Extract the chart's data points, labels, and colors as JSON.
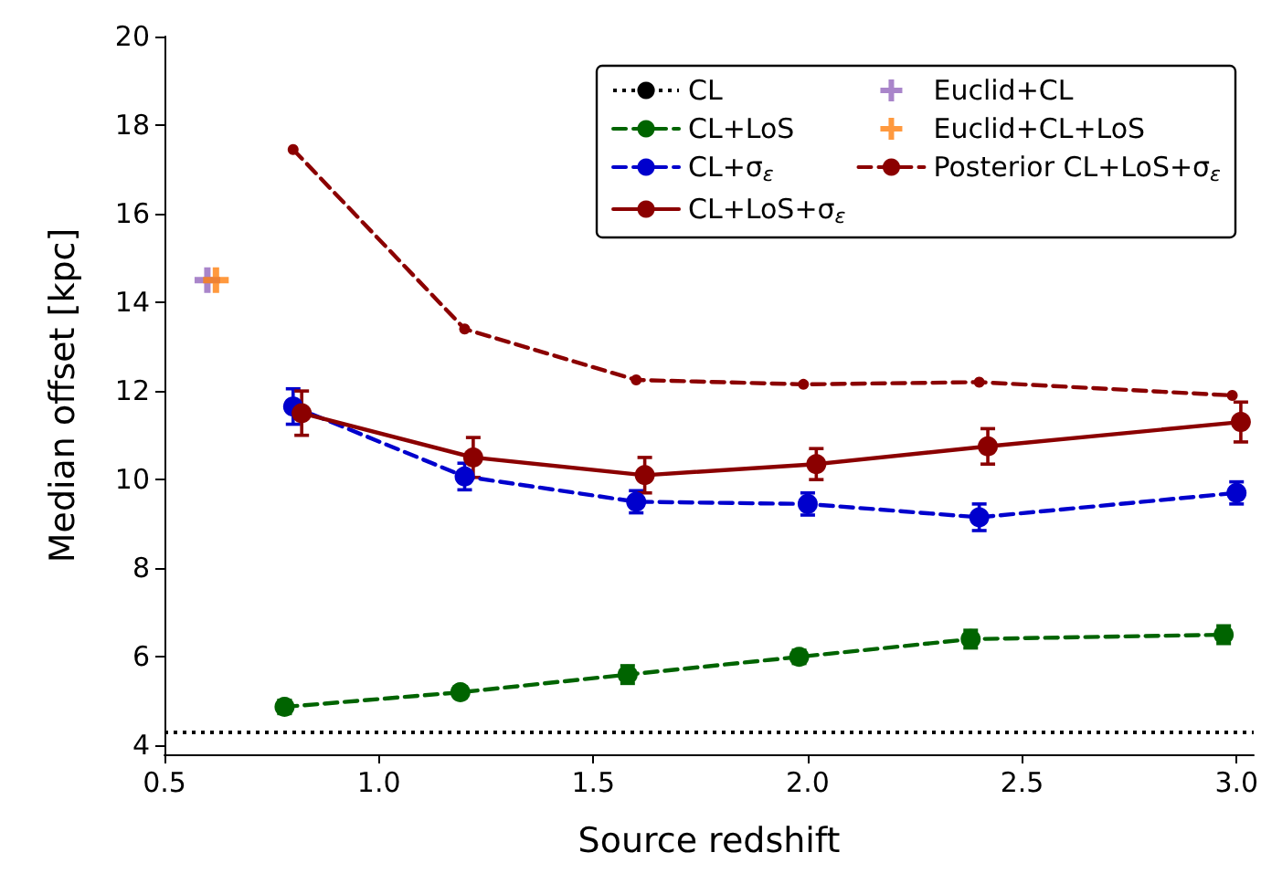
{
  "chart_data": {
    "type": "line",
    "xlabel": "Source redshift",
    "ylabel": "Median offset [kpc]",
    "xlim": [
      0.5,
      3.04
    ],
    "ylim": [
      3.8,
      20
    ],
    "xticks": [
      {
        "value": 0.5,
        "label": "0.5"
      },
      {
        "value": 1,
        "label": "1.0"
      },
      {
        "value": 1.5,
        "label": "1.5"
      },
      {
        "value": 2,
        "label": "2.0"
      },
      {
        "value": 2.5,
        "label": "2.5"
      },
      {
        "value": 3,
        "label": "3.0"
      }
    ],
    "yticks": [
      4,
      6,
      8,
      10,
      12,
      14,
      16,
      18,
      20
    ],
    "grid": false,
    "legend": "top right",
    "ref_lines": [
      {
        "axis": "y",
        "value": 4.3,
        "label": "CL",
        "color": "#000000",
        "line_style": "dotted"
      }
    ],
    "series": [
      {
        "name": "CL+LoS",
        "color": "#006400",
        "line_style": "dashed",
        "marker": "circle",
        "x": [
          0.78,
          1.19,
          1.58,
          1.98,
          2.38,
          2.97
        ],
        "values": [
          4.87,
          5.2,
          5.6,
          6.0,
          6.4,
          6.5
        ],
        "errors": [
          0.15,
          0.12,
          0.2,
          0.15,
          0.2,
          0.2
        ]
      },
      {
        "name": "CL+σ$_{ε}$",
        "color": "#0000cd",
        "line_style": "dashed",
        "marker": "circle",
        "x": [
          0.8,
          1.2,
          1.6,
          2.0,
          2.4,
          3.0
        ],
        "values": [
          11.65,
          10.07,
          9.5,
          9.45,
          9.15,
          9.7
        ],
        "errors": [
          0.4,
          0.3,
          0.25,
          0.25,
          0.3,
          0.25
        ]
      },
      {
        "name": "CL+LoS+σ$_{ε}$",
        "color": "#8b0000",
        "line_style": "solid",
        "marker": "circle",
        "x": [
          0.82,
          1.22,
          1.62,
          2.02,
          2.42,
          3.01
        ],
        "values": [
          11.5,
          10.5,
          10.1,
          10.35,
          10.75,
          11.3
        ],
        "errors": [
          0.5,
          0.45,
          0.4,
          0.35,
          0.4,
          0.45
        ]
      },
      {
        "name": "Euclid+CL",
        "color": "#9467bd",
        "type": "scatter",
        "marker": "cross",
        "x": [
          0.6
        ],
        "values": [
          14.5
        ]
      },
      {
        "name": "Euclid+CL+LoS",
        "color": "#ff7f0e",
        "type": "scatter",
        "marker": "cross",
        "x": [
          0.62
        ],
        "values": [
          14.5
        ]
      },
      {
        "name": "Posterior CL+LoS+σ$_{ε}$",
        "color": "#8b0000",
        "line_style": "dashed",
        "marker": "circle",
        "x": [
          0.8,
          1.2,
          1.6,
          1.99,
          2.4,
          2.99
        ],
        "values": [
          17.45,
          13.4,
          12.25,
          12.15,
          12.2,
          11.9
        ]
      }
    ]
  }
}
